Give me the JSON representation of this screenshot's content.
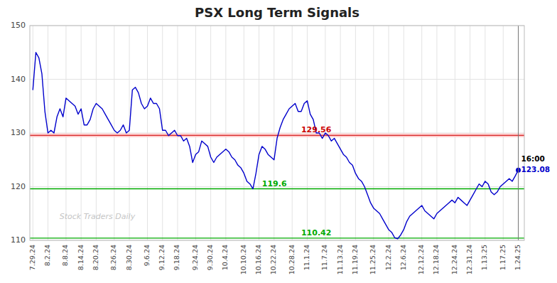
{
  "chart_data": {
    "type": "line",
    "title": "PSX Long Term Signals",
    "categories": [
      "7.29.24",
      null,
      null,
      null,
      null,
      "8.2.24",
      null,
      null,
      null,
      null,
      null,
      "8.8.24",
      null,
      null,
      null,
      null,
      "8.14.24",
      null,
      null,
      null,
      null,
      "8.20.24",
      null,
      null,
      null,
      null,
      null,
      "8.26.24",
      null,
      null,
      null,
      null,
      "8.30.24",
      null,
      null,
      null,
      null,
      null,
      "9.6.24",
      null,
      null,
      null,
      null,
      "9.12.24",
      null,
      null,
      null,
      null,
      "9.18.24",
      null,
      null,
      null,
      null,
      null,
      "9.24.24",
      null,
      null,
      null,
      null,
      "9.30.24",
      null,
      null,
      null,
      null,
      "10.4.24",
      null,
      null,
      null,
      null,
      null,
      "10.10.24",
      null,
      null,
      null,
      null,
      "10.16.24",
      null,
      null,
      null,
      null,
      "10.22.24",
      null,
      null,
      null,
      null,
      null,
      "10.28.24",
      null,
      null,
      null,
      null,
      "11.1.24",
      null,
      null,
      null,
      null,
      null,
      "11.7.24",
      null,
      null,
      null,
      null,
      "11.13.24",
      null,
      null,
      null,
      null,
      "11.19.24",
      null,
      null,
      null,
      null,
      null,
      "11.25.24",
      null,
      null,
      null,
      null,
      "12.2.24",
      null,
      null,
      null,
      null,
      "12.6.24",
      null,
      null,
      null,
      null,
      null,
      "12.12.24",
      null,
      null,
      null,
      null,
      "12.18.24",
      null,
      null,
      null,
      null,
      null,
      "12.24.24",
      null,
      null,
      null,
      null,
      "12.31.24",
      null,
      null,
      null,
      null,
      "1.13.25",
      null,
      null,
      null,
      null,
      null,
      "1.17.25",
      null,
      null,
      null,
      null,
      "1.24.25"
    ],
    "values": [
      138.0,
      145.0,
      144.0,
      141.0,
      134.0,
      130.0,
      130.5,
      130.0,
      133.0,
      134.5,
      133.0,
      136.5,
      136.0,
      135.5,
      135.0,
      133.5,
      134.5,
      131.5,
      131.5,
      132.5,
      134.5,
      135.5,
      135.0,
      134.5,
      133.5,
      132.5,
      131.5,
      130.5,
      130.0,
      130.5,
      131.5,
      130.0,
      130.5,
      138.0,
      138.5,
      137.5,
      135.5,
      134.5,
      135.0,
      136.5,
      135.5,
      135.5,
      134.5,
      130.5,
      130.5,
      129.5,
      130.0,
      130.5,
      129.5,
      129.5,
      128.5,
      129.0,
      127.5,
      124.5,
      126.0,
      126.5,
      128.5,
      128.0,
      127.5,
      125.5,
      124.5,
      125.5,
      126.0,
      126.5,
      127.0,
      126.5,
      125.5,
      125.0,
      124.0,
      123.5,
      122.5,
      121.0,
      120.5,
      119.6,
      122.5,
      126.0,
      127.5,
      127.0,
      126.0,
      125.5,
      125.0,
      129.0,
      131.0,
      132.5,
      133.5,
      134.5,
      135.0,
      135.5,
      134.0,
      134.0,
      135.5,
      136.0,
      133.5,
      132.5,
      130.0,
      130.0,
      129.0,
      130.0,
      129.5,
      128.5,
      129.0,
      128.0,
      127.0,
      126.0,
      125.5,
      124.5,
      124.0,
      122.5,
      121.5,
      121.0,
      120.0,
      118.5,
      117.0,
      116.0,
      115.5,
      115.0,
      114.0,
      113.0,
      112.0,
      111.5,
      110.5,
      110.3,
      111.0,
      112.0,
      113.5,
      114.5,
      115.0,
      115.5,
      116.0,
      116.5,
      115.5,
      115.0,
      114.5,
      114.0,
      115.0,
      115.5,
      116.0,
      116.5,
      117.0,
      117.5,
      117.0,
      118.0,
      117.5,
      117.0,
      116.5,
      117.5,
      118.5,
      119.5,
      120.5,
      120.0,
      121.0,
      120.5,
      119.0,
      118.5,
      119.0,
      120.0,
      120.5,
      121.0,
      121.5,
      121.0,
      122.0,
      123.08
    ],
    "color": "#0000cc",
    "ylim": [
      110,
      150
    ],
    "yticks": [
      110,
      120,
      130,
      140,
      150
    ],
    "grid": true,
    "reference_lines": [
      {
        "value": 129.56,
        "label": "129.56",
        "color": "#cc0000"
      },
      {
        "value": 119.6,
        "label": "119.6",
        "color": "#00aa00"
      },
      {
        "value": 110.42,
        "label": "110.42",
        "color": "#00aa00"
      }
    ],
    "last_point": {
      "value": 123.08,
      "label": "123.08",
      "time": "16:00",
      "color": "#0000cc"
    },
    "watermark": "Stock Traders Daily",
    "watermark_color": "#bbbbbb"
  }
}
